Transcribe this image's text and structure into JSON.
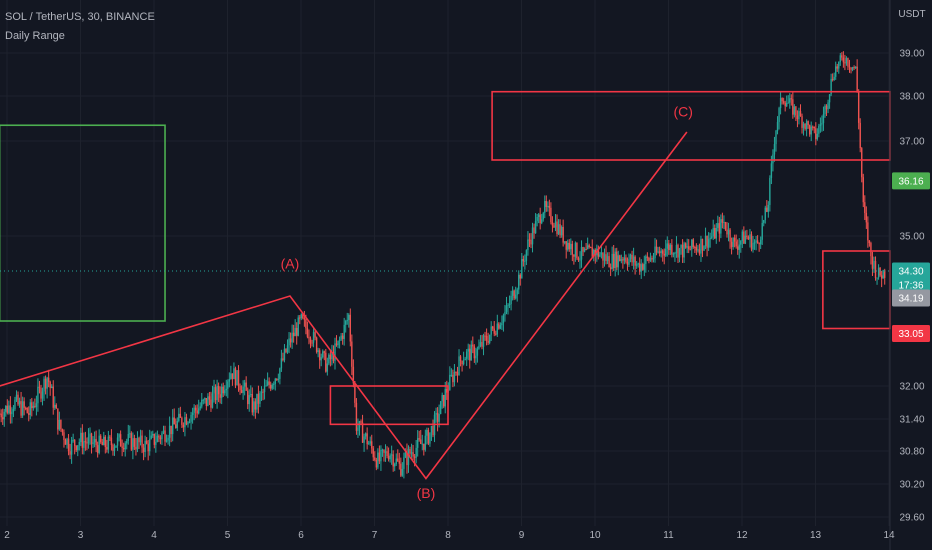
{
  "header": {
    "symbol_line": "SOL / TetherUS, 30, BINANCE",
    "indicator_line": "Daily Range"
  },
  "chart_data": {
    "type": "candlestick",
    "currency_label": "USDT",
    "x_labels": [
      "2",
      "3",
      "4",
      "5",
      "6",
      "7",
      "8",
      "9",
      "10",
      "11",
      "12",
      "13",
      "14"
    ],
    "x_range": [
      1.9,
      14.0
    ],
    "y_ticks": [
      39.0,
      38.0,
      37.0,
      35.0,
      32.0,
      31.4,
      30.8,
      30.2,
      29.6
    ],
    "y_tick_labels": [
      "39.00",
      "38.00",
      "37.00",
      "35.00",
      "32.00",
      "31.40",
      "30.80",
      "30.20",
      "29.60"
    ],
    "price_badges": [
      {
        "label": "36.16",
        "value": 36.16,
        "color": "#4caf50"
      },
      {
        "label": "34.30",
        "value": 34.3,
        "color": "#26a69a"
      },
      {
        "label": "17:36",
        "value": 34.02,
        "color": "#26a69a"
      },
      {
        "label": "34.19",
        "value": 33.76,
        "color": "#9598a1"
      },
      {
        "label": "33.05",
        "value": 33.05,
        "color": "#f23645"
      }
    ],
    "current_price": 34.3,
    "price_path": [
      [
        1.9,
        31.5
      ],
      [
        2.1,
        31.7
      ],
      [
        2.3,
        31.5
      ],
      [
        2.45,
        31.9
      ],
      [
        2.55,
        32.2
      ],
      [
        2.7,
        31.3
      ],
      [
        2.85,
        30.9
      ],
      [
        3.0,
        31.0
      ],
      [
        3.3,
        30.9
      ],
      [
        3.6,
        31.0
      ],
      [
        3.9,
        30.9
      ],
      [
        4.1,
        31.1
      ],
      [
        4.3,
        31.3
      ],
      [
        4.6,
        31.6
      ],
      [
        4.9,
        31.9
      ],
      [
        5.05,
        32.3
      ],
      [
        5.2,
        32.0
      ],
      [
        5.35,
        31.6
      ],
      [
        5.5,
        31.9
      ],
      [
        5.7,
        32.3
      ],
      [
        5.85,
        32.9
      ],
      [
        6.0,
        33.3
      ],
      [
        6.15,
        33.0
      ],
      [
        6.35,
        32.4
      ],
      [
        6.5,
        32.8
      ],
      [
        6.65,
        33.4
      ],
      [
        6.75,
        31.3
      ],
      [
        6.9,
        31.0
      ],
      [
        7.05,
        30.6
      ],
      [
        7.2,
        30.8
      ],
      [
        7.35,
        30.5
      ],
      [
        7.5,
        30.8
      ],
      [
        7.7,
        31.0
      ],
      [
        7.85,
        31.4
      ],
      [
        8.0,
        32.0
      ],
      [
        8.2,
        32.6
      ],
      [
        8.4,
        32.7
      ],
      [
        8.6,
        33.1
      ],
      [
        8.8,
        33.5
      ],
      [
        8.95,
        34.1
      ],
      [
        9.1,
        34.9
      ],
      [
        9.3,
        35.6
      ],
      [
        9.45,
        35.3
      ],
      [
        9.6,
        34.9
      ],
      [
        9.8,
        34.6
      ],
      [
        10.0,
        34.7
      ],
      [
        10.2,
        34.5
      ],
      [
        10.4,
        34.6
      ],
      [
        10.6,
        34.4
      ],
      [
        10.8,
        34.6
      ],
      [
        11.0,
        34.8
      ],
      [
        11.2,
        34.7
      ],
      [
        11.4,
        34.8
      ],
      [
        11.6,
        35.0
      ],
      [
        11.75,
        35.3
      ],
      [
        11.9,
        34.8
      ],
      [
        12.05,
        35.0
      ],
      [
        12.2,
        34.8
      ],
      [
        12.35,
        35.6
      ],
      [
        12.45,
        37.2
      ],
      [
        12.55,
        38.0
      ],
      [
        12.7,
        37.7
      ],
      [
        12.85,
        37.4
      ],
      [
        13.0,
        37.1
      ],
      [
        13.1,
        37.5
      ],
      [
        13.25,
        38.6
      ],
      [
        13.4,
        38.9
      ],
      [
        13.55,
        38.6
      ],
      [
        13.65,
        35.6
      ],
      [
        13.75,
        34.6
      ],
      [
        13.85,
        34.2
      ],
      [
        13.95,
        34.3
      ]
    ],
    "annotations": {
      "labels": [
        {
          "text": "(A)",
          "x": 5.85,
          "y": 34.35,
          "color": "#f23645"
        },
        {
          "text": "(B)",
          "x": 7.7,
          "y": 29.95,
          "color": "#f23645"
        },
        {
          "text": "(C)",
          "x": 11.2,
          "y": 37.55,
          "color": "#f23645"
        }
      ],
      "wave_lines": [
        {
          "points": [
            [
              1.9,
              32.0
            ],
            [
              5.85,
              33.8
            ],
            [
              7.7,
              30.3
            ],
            [
              11.25,
              37.2
            ]
          ],
          "color": "#f23645"
        }
      ],
      "boxes": [
        {
          "x0": 1.9,
          "x1": 4.15,
          "y0": 33.3,
          "y1": 37.35,
          "color": "#4caf50"
        },
        {
          "x0": 6.4,
          "x1": 8.0,
          "y0": 31.3,
          "y1": 32.0,
          "color": "#f23645"
        },
        {
          "x0": 8.6,
          "x1": 14.1,
          "y0": 36.6,
          "y1": 38.1,
          "color": "#f23645"
        },
        {
          "x0": 13.1,
          "x1": 14.1,
          "y0": 33.15,
          "y1": 34.7,
          "color": "#f23645"
        }
      ]
    },
    "colors": {
      "background": "#131722",
      "up": "#26a69a",
      "down": "#ef5350",
      "grid": "#1e222d",
      "text": "#b2b5be",
      "pivot": "#f23645",
      "range": "#4caf50"
    }
  }
}
